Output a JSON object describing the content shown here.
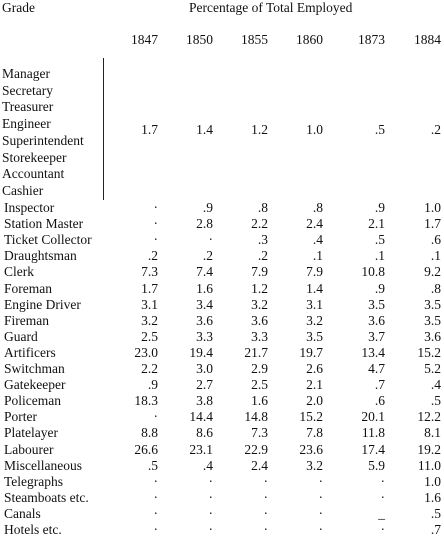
{
  "header": {
    "grade": "Grade",
    "title": "Percentage of Total Employed",
    "years": [
      "1847",
      "1850",
      "1855",
      "1860",
      "1873",
      "1884"
    ]
  },
  "group": {
    "grades": [
      "Manager",
      "Secretary",
      "Treasurer",
      "Engineer",
      "Superintendent",
      "Storekeeper",
      "Accountant",
      "Cashier"
    ],
    "values": [
      "1.7",
      "1.4",
      "1.2",
      "1.0",
      ".5",
      ".2"
    ]
  },
  "table": {
    "rows": [
      [
        "Inspector",
        "·",
        ".9",
        ".8",
        ".8",
        ".9",
        "1.0"
      ],
      [
        "Station Master",
        "·",
        "2.8",
        "2.2",
        "2.4",
        "2.1",
        "1.7"
      ],
      [
        "Ticket Collector",
        "·",
        "·",
        ".3",
        ".4",
        ".5",
        ".6"
      ],
      [
        "Draughtsman",
        ".2",
        ".2",
        ".2",
        ".1",
        ".1",
        ".1"
      ],
      [
        "Clerk",
        "7.3",
        "7.4",
        "7.9",
        "7.9",
        "10.8",
        "9.2"
      ],
      [
        "Foreman",
        "1.7",
        "1.6",
        "1.2",
        "1.4",
        ".9",
        ".8"
      ],
      [
        "Engine Driver",
        "3.1",
        "3.4",
        "3.2",
        "3.1",
        "3.5",
        "3.5"
      ],
      [
        "Fireman",
        "3.2",
        "3.6",
        "3.6",
        "3.2",
        "3.6",
        "3.5"
      ],
      [
        "Guard",
        "2.5",
        "3.3",
        "3.3",
        "3.5",
        "3.7",
        "3.6"
      ],
      [
        "Artificers",
        "23.0",
        "19.4",
        "21.7",
        "19.7",
        "13.4",
        "15.2"
      ],
      [
        "Switchman",
        "2.2",
        "3.0",
        "2.9",
        "2.6",
        "4.7",
        "5.2"
      ],
      [
        "Gatekeeper",
        ".9",
        "2.7",
        "2.5",
        "2.1",
        ".7",
        ".4"
      ],
      [
        "Policeman",
        "18.3",
        "3.8",
        "1.6",
        "2.0",
        ".6",
        ".5"
      ],
      [
        "Porter",
        "·",
        "14.4",
        "14.8",
        "15.2",
        "20.1",
        "12.2"
      ],
      [
        "Platelayer",
        "8.8",
        "8.6",
        "7.3",
        "7.8",
        "11.8",
        "8.1"
      ],
      [
        "Labourer",
        "26.6",
        "23.1",
        "22.9",
        "23.6",
        "17.4",
        "19.2"
      ],
      [
        "Miscellaneous",
        ".5",
        ".4",
        "2.4",
        "3.2",
        "5.9",
        "11.0"
      ],
      [
        "Telegraphs",
        "·",
        "·",
        "·",
        "·",
        "·",
        "1.0"
      ],
      [
        "Steamboats etc.",
        "·",
        "·",
        "·",
        "·",
        "·",
        "1.6"
      ],
      [
        "Canals",
        "·",
        "·",
        "·",
        "·",
        "_",
        ".5"
      ],
      [
        "Hotels etc.",
        "·",
        "·",
        "·",
        "·",
        "·",
        ".7"
      ]
    ]
  }
}
